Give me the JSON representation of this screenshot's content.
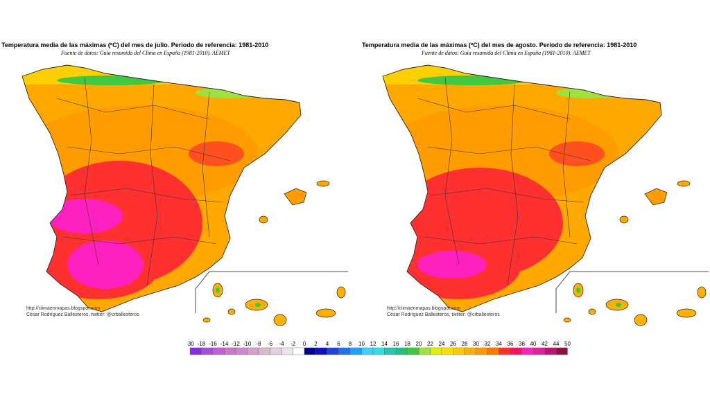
{
  "maps": [
    {
      "title": "Temperatura media de las máximas (ºC) del mes de julio. Periodo de referencia: 1981-2010",
      "source": "Fuente de datos: Guía resumida del Clima en España (1981-2010). AEMET",
      "credit_url": "http://climaenmapas.blogspot.com",
      "credit_author": "César Rodríguez Ballesteros, twitter: @crballesteros",
      "month": "julio"
    },
    {
      "title": "Temperatura media de las máximas (ºC) del mes de agosto. Periodo de referencia: 1981-2010",
      "source": "Fuente de datos: Guía resumida del Clima en España (1981-2010). AEMET",
      "credit_url": "http://climaenmapas.blogspot.com",
      "credit_author": "César Rodríguez Ballesteros, twitter: @crballesteros",
      "month": "agosto"
    }
  ],
  "legend": {
    "labels": [
      "-30",
      "-18",
      "-16",
      "-14",
      "-12",
      "-10",
      "-8",
      "-6",
      "-4",
      "-2",
      "0",
      "2",
      "4",
      "6",
      "8",
      "10",
      "12",
      "14",
      "16",
      "18",
      "20",
      "22",
      "24",
      "26",
      "28",
      "30",
      "32",
      "34",
      "36",
      "38",
      "40",
      "42",
      "44",
      "50"
    ],
    "colors": [
      "#8a2be2",
      "#a64fd6",
      "#c060d6",
      "#c878c8",
      "#cc8acc",
      "#d4a0c8",
      "#d8b8cc",
      "#e4d0dc",
      "#ece4ec",
      "#ffffff",
      "#000090",
      "#1010c0",
      "#2040e0",
      "#2070f0",
      "#20a0ff",
      "#40d0ff",
      "#30e0e0",
      "#20c8b0",
      "#20c080",
      "#40c840",
      "#a0e040",
      "#e0f000",
      "#ffe000",
      "#ffc800",
      "#ffb000",
      "#ff9c00",
      "#ff7800",
      "#ff3030",
      "#ff1060",
      "#ff20c0",
      "#e020a0",
      "#c01070",
      "#901040"
    ]
  }
}
